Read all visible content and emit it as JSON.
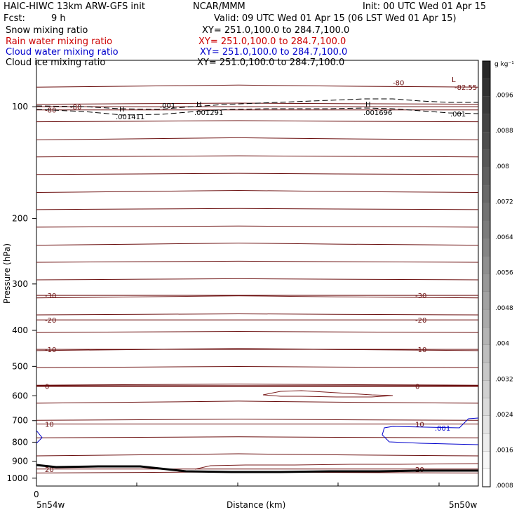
{
  "header": {
    "line1_left": "HAIC-HIWC 13km ARW-GFS init",
    "line1_mid": "NCAR/MMM",
    "line1_right": "Init: 00 UTC Wed 01 Apr 15",
    "fcst_label": "Fcst:",
    "fcst_value": "9 h",
    "valid": "Valid: 09 UTC Wed 01 Apr 15 (06 LST Wed 01 Apr 15)"
  },
  "fields": [
    {
      "name": "Snow mixing ratio",
      "xy": "XY= 251.0,100.0 to 284.7,100.0",
      "color": "#000000"
    },
    {
      "name": "Rain water mixing ratio",
      "xy": "XY= 251.0,100.0 to 284.7,100.0",
      "color": "#cc0000"
    },
    {
      "name": "Cloud water mixing ratio",
      "xy": "XY= 251.0,100.0 to 284.7,100.0",
      "color": "#0000cc"
    },
    {
      "name": "Cloud ice mixing ratio",
      "xy": "XY= 251.0,100.0 to 284.7,100.0",
      "color": "#000000"
    }
  ],
  "colorbar": {
    "unit": "g kg⁻¹",
    "ticks": [
      ".0096",
      ".0088",
      ".008",
      ".0072",
      ".0064",
      ".0056",
      ".0048",
      ".004",
      ".0032",
      ".0024",
      ".0016",
      ".0008"
    ]
  },
  "chart_data": {
    "type": "contour",
    "xlabel": "Distance (km)",
    "ylabel": "Pressure (hPa)",
    "x_tick_zero": "0",
    "x_left_label": "5n54w",
    "x_right_label": "5n50w",
    "y_axis": {
      "scale": "log",
      "range": [
        1050,
        75
      ],
      "ticks": [
        100,
        200,
        300,
        400,
        500,
        600,
        700,
        800,
        900,
        1000
      ]
    },
    "temperature_contours": [
      {
        "label": "-80",
        "pressure": 100,
        "pressure_right": 83
      },
      {
        "label": "-80",
        "pressure": 102
      },
      {
        "label": "-30",
        "pressure": 322
      },
      {
        "label": "-20",
        "pressure": 375
      },
      {
        "label": "-10",
        "pressure": 450
      },
      {
        "label": "0",
        "pressure": 565
      },
      {
        "label": "10",
        "pressure": 715
      },
      {
        "label": "20",
        "pressure": 945
      }
    ],
    "extremum": {
      "symbol": "L",
      "value": "-82.55",
      "pressure": 101
    },
    "ice_contours": {
      "level": ".001",
      "highs": [
        {
          "symbol": "H",
          "value": ".001411"
        },
        {
          "symbol": "H",
          "value": ".001291"
        },
        {
          "symbol": "H",
          "value": ".001696"
        }
      ]
    },
    "cloud_water_contours": {
      "level": ".001",
      "pressure_range": [
        890,
        945
      ]
    }
  }
}
